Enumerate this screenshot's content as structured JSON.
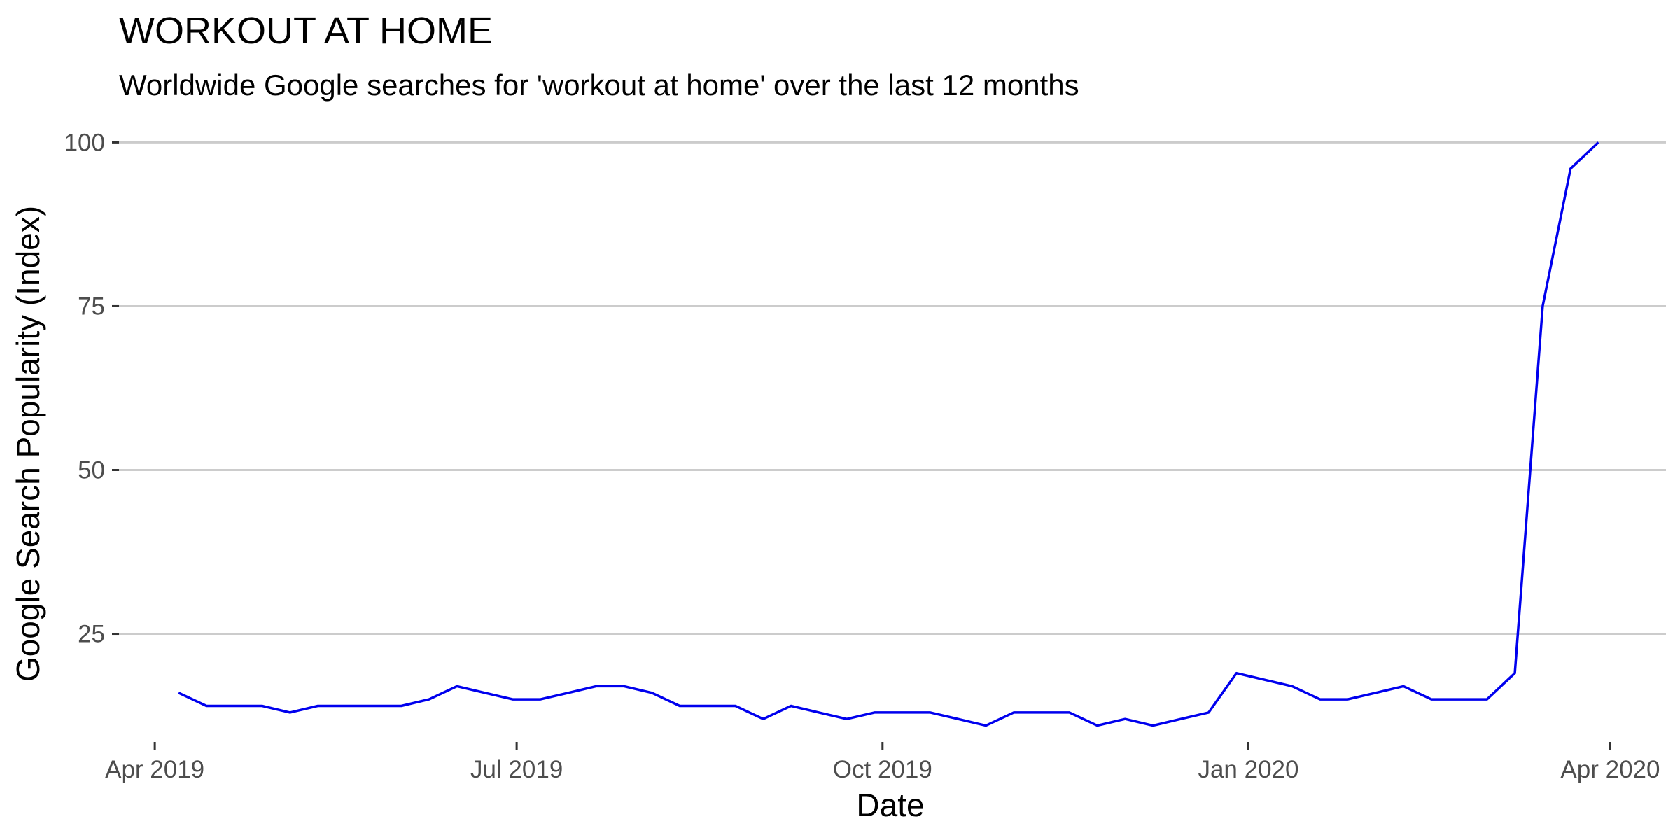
{
  "chart_data": {
    "type": "line",
    "title": "WORKOUT AT HOME",
    "subtitle": "Worldwide Google searches for 'workout at home' over the last 12 months",
    "xlabel": "Date",
    "ylabel": "Google Search Popularity (Index)",
    "x_ticks": [
      {
        "date": "2019-04-01",
        "label": "Apr 2019"
      },
      {
        "date": "2019-07-01",
        "label": "Jul 2019"
      },
      {
        "date": "2019-10-01",
        "label": "Oct 2019"
      },
      {
        "date": "2020-01-01",
        "label": "Jan 2020"
      },
      {
        "date": "2020-04-01",
        "label": "Apr 2020"
      }
    ],
    "y_ticks": [
      25,
      50,
      75,
      100
    ],
    "xlim": [
      "2019-03-23",
      "2020-04-15"
    ],
    "ylim": [
      8.5,
      102.5
    ],
    "grid": "horizontal major gridlines only",
    "line_color": "#0000ee",
    "series": [
      {
        "x": [
          "2019-04-07",
          "2019-04-14",
          "2019-04-21",
          "2019-04-28",
          "2019-05-05",
          "2019-05-12",
          "2019-05-19",
          "2019-05-26",
          "2019-06-02",
          "2019-06-09",
          "2019-06-16",
          "2019-06-23",
          "2019-06-30",
          "2019-07-07",
          "2019-07-14",
          "2019-07-21",
          "2019-07-28",
          "2019-08-04",
          "2019-08-11",
          "2019-08-18",
          "2019-08-25",
          "2019-09-01",
          "2019-09-08",
          "2019-09-15",
          "2019-09-22",
          "2019-09-29",
          "2019-10-06",
          "2019-10-13",
          "2019-10-20",
          "2019-10-27",
          "2019-11-03",
          "2019-11-10",
          "2019-11-17",
          "2019-11-24",
          "2019-12-01",
          "2019-12-08",
          "2019-12-15",
          "2019-12-22",
          "2019-12-29",
          "2020-01-05",
          "2020-01-12",
          "2020-01-19",
          "2020-01-26",
          "2020-02-02",
          "2020-02-09",
          "2020-02-16",
          "2020-02-23",
          "2020-03-01",
          "2020-03-08",
          "2020-03-15",
          "2020-03-22",
          "2020-03-29"
        ],
        "values": [
          16,
          14,
          14,
          14,
          13,
          14,
          14,
          14,
          14,
          15,
          17,
          16,
          15,
          15,
          16,
          17,
          17,
          16,
          14,
          14,
          14,
          12,
          14,
          13,
          12,
          13,
          13,
          13,
          12,
          11,
          13,
          13,
          13,
          11,
          12,
          11,
          12,
          13,
          19,
          18,
          17,
          15,
          15,
          16,
          17,
          15,
          15,
          15,
          19,
          75,
          96,
          100
        ]
      }
    ]
  }
}
